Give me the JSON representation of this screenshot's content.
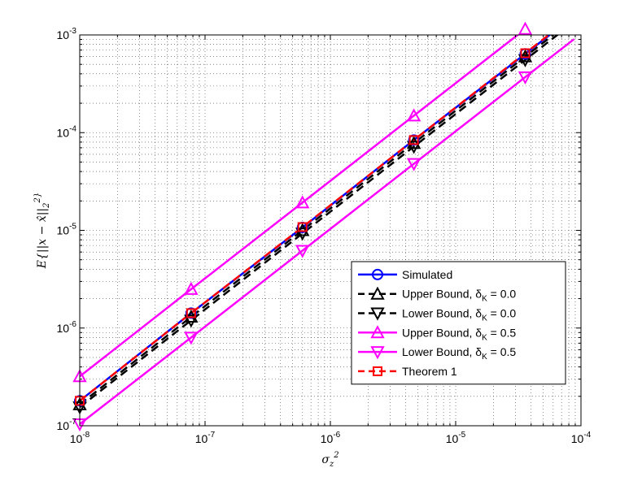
{
  "chart_data": {
    "type": "line",
    "title": "",
    "xlabel": "σ_z^2",
    "ylabel": "E{||x − x̂||_2^2}",
    "xscale": "log",
    "yscale": "log",
    "xlim": [
      1e-08,
      0.0001
    ],
    "ylim": [
      1e-07,
      0.001
    ],
    "grid": true,
    "legend_position": "lower-right",
    "x": [
      1e-08,
      7.74e-08,
      5.99e-07,
      4.64e-06,
      3.59e-05
    ],
    "x_tick_labels": [
      "10^-8",
      "10^-7",
      "10^-6",
      "10^-5",
      "10^-4"
    ],
    "y_tick_labels": [
      "10^-7",
      "10^-6",
      "10^-5",
      "10^-4",
      "10^-3"
    ],
    "series": [
      {
        "name": "Simulated",
        "color": "#0000ff",
        "dash": "solid",
        "marker": "circle",
        "values": [
          1.8e-07,
          1.42e-06,
          1.07e-05,
          8.4e-05,
          0.00064
        ]
      },
      {
        "name": "Upper Bound, δ_K = 0.0",
        "color": "#000000",
        "dash": "dashed",
        "marker": "triangle-up",
        "values": [
          1.65e-07,
          1.3e-06,
          1e-05,
          7.8e-05,
          0.0006
        ]
      },
      {
        "name": "Lower Bound, δ_K = 0.0",
        "color": "#000000",
        "dash": "dashed",
        "marker": "triangle-down",
        "values": [
          1.55e-07,
          1.2e-06,
          9.3e-06,
          7.2e-05,
          0.000555
        ]
      },
      {
        "name": "Upper Bound, δ_K = 0.5",
        "color": "#ff00ff",
        "dash": "solid",
        "marker": "triangle-up",
        "values": [
          3.2e-07,
          2.5e-06,
          1.92e-05,
          0.000149,
          0.00115
        ]
      },
      {
        "name": "Lower Bound, δ_K = 0.5",
        "color": "#ff00ff",
        "dash": "solid",
        "marker": "triangle-down",
        "values": [
          1.04e-07,
          8e-07,
          6.2e-06,
          4.8e-05,
          0.00037
        ]
      },
      {
        "name": "Theorem 1",
        "color": "#ff0000",
        "dash": "dashed",
        "marker": "square",
        "values": [
          1.8e-07,
          1.42e-06,
          1.08e-05,
          8.4e-05,
          0.00065
        ]
      }
    ]
  }
}
